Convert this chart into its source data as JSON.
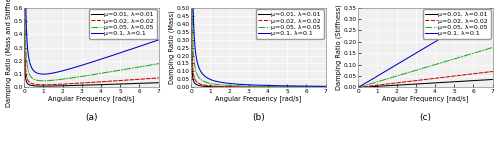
{
  "params": [
    {
      "mu": 0.01,
      "lambda_val": 0.01,
      "color": "#000000",
      "linestyle": "solid",
      "label": "μ=0.01, λ=0.01"
    },
    {
      "mu": 0.02,
      "lambda_val": 0.02,
      "color": "#cc0000",
      "linestyle": "dashed",
      "label": "μ=0.02, λ=0.02"
    },
    {
      "mu": 0.05,
      "lambda_val": 0.05,
      "color": "#22aa22",
      "linestyle": "dashdot",
      "label": "μ=0.05, λ=0.05"
    },
    {
      "mu": 0.1,
      "lambda_val": 0.1,
      "color": "#0000cc",
      "linestyle": "solid",
      "label": "μ=0.1, λ=0.1"
    }
  ],
  "omega_min": 0.01,
  "omega_max": 7.0,
  "omega_points": 2000,
  "xlabel": "Angular Frequency [rad/s]",
  "ylabel_a": "Damping Ratio (Mass and Stiffness)",
  "ylabel_b": "Damping Ratio (Mass)",
  "ylabel_c": "Damping Ratio (Stiffness)",
  "ylim_a": [
    0,
    0.6
  ],
  "ylim_b": [
    0,
    0.5
  ],
  "ylim_c": [
    0,
    0.35
  ],
  "yticks_a": [
    0.0,
    0.1,
    0.2,
    0.3,
    0.4,
    0.5,
    0.6
  ],
  "yticks_b": [
    0.0,
    0.05,
    0.1,
    0.15,
    0.2,
    0.25,
    0.3,
    0.35,
    0.4,
    0.45,
    0.5
  ],
  "yticks_c": [
    0.0,
    0.05,
    0.1,
    0.15,
    0.2,
    0.25,
    0.3,
    0.35
  ],
  "xticks": [
    0,
    1,
    2,
    3,
    4,
    5,
    6,
    7
  ],
  "label_a": "(a)",
  "label_b": "(b)",
  "label_c": "(c)",
  "legend_fontsize": 4.5,
  "axis_fontsize": 4.8,
  "tick_fontsize": 4.2,
  "sublabel_fontsize": 6.5,
  "linewidth": 0.75,
  "bg_color": "#f0f0f0",
  "grid_color": "#ffffff",
  "fig_color": "#ffffff"
}
